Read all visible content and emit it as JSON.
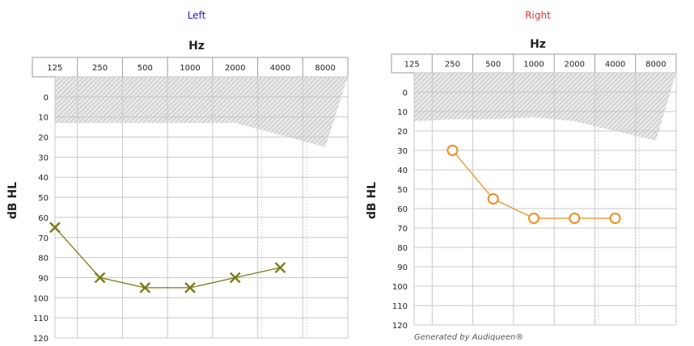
{
  "chart_data": [
    {
      "type": "line",
      "title": "Left",
      "title_color": "#1a1ad0",
      "xlabel": "Hz",
      "ylabel": "dB HL",
      "x_scale": "log",
      "x_ticks": [
        "125",
        "250",
        "500",
        "1000",
        "2000",
        "4000",
        "8000"
      ],
      "y_ticks": [
        "0",
        "10",
        "20",
        "30",
        "40",
        "50",
        "60",
        "70",
        "80",
        "90",
        "100",
        "110",
        "120"
      ],
      "ylim": [
        120,
        -10
      ],
      "y_inverted": true,
      "grid": true,
      "shaded_region_upper_boundary": [
        {
          "x": 125,
          "y": 13
        },
        {
          "x": 250,
          "y": 13
        },
        {
          "x": 500,
          "y": 13
        },
        {
          "x": 1000,
          "y": 13
        },
        {
          "x": 2000,
          "y": 13
        },
        {
          "x": 4000,
          "y": 19
        },
        {
          "x": 8000,
          "y": 25
        }
      ],
      "series": [
        {
          "color": "#7a7a1a",
          "marker": "x",
          "points": [
            {
              "x": 125,
              "y": 65
            },
            {
              "x": 250,
              "y": 90
            },
            {
              "x": 500,
              "y": 95
            },
            {
              "x": 1000,
              "y": 95
            },
            {
              "x": 2000,
              "y": 90
            },
            {
              "x": 4000,
              "y": 85
            }
          ]
        }
      ]
    },
    {
      "type": "line",
      "title": "Right",
      "title_color": "#e03030",
      "xlabel": "Hz",
      "ylabel": "dB HL",
      "x_scale": "log",
      "x_ticks": [
        "125",
        "250",
        "500",
        "1000",
        "2000",
        "4000",
        "8000"
      ],
      "y_ticks": [
        "0",
        "10",
        "20",
        "30",
        "40",
        "50",
        "60",
        "70",
        "80",
        "90",
        "100",
        "110",
        "120"
      ],
      "ylim": [
        120,
        -10
      ],
      "y_inverted": true,
      "grid": true,
      "shaded_region_upper_boundary": [
        {
          "x": 125,
          "y": 15
        },
        {
          "x": 250,
          "y": 14
        },
        {
          "x": 500,
          "y": 14
        },
        {
          "x": 1000,
          "y": 13
        },
        {
          "x": 2000,
          "y": 15
        },
        {
          "x": 4000,
          "y": 20
        },
        {
          "x": 8000,
          "y": 25
        }
      ],
      "series": [
        {
          "color": "#f08c1e",
          "marker": "o",
          "points": [
            {
              "x": 250,
              "y": 30
            },
            {
              "x": 500,
              "y": 55
            },
            {
              "x": 1000,
              "y": 65
            },
            {
              "x": 2000,
              "y": 65
            },
            {
              "x": 4000,
              "y": 65
            }
          ]
        }
      ]
    }
  ],
  "footer": {
    "note": "Generated by Audiqueen®"
  },
  "colors": {
    "grid_line": "#c8c8c8",
    "grid_dashed": "#d6d6d6",
    "shade_fill": "#e9e9e9",
    "shade_hatch": "#b7b7b7",
    "tick_box_border": "#9a9a9a",
    "axis_text": "#222222"
  }
}
